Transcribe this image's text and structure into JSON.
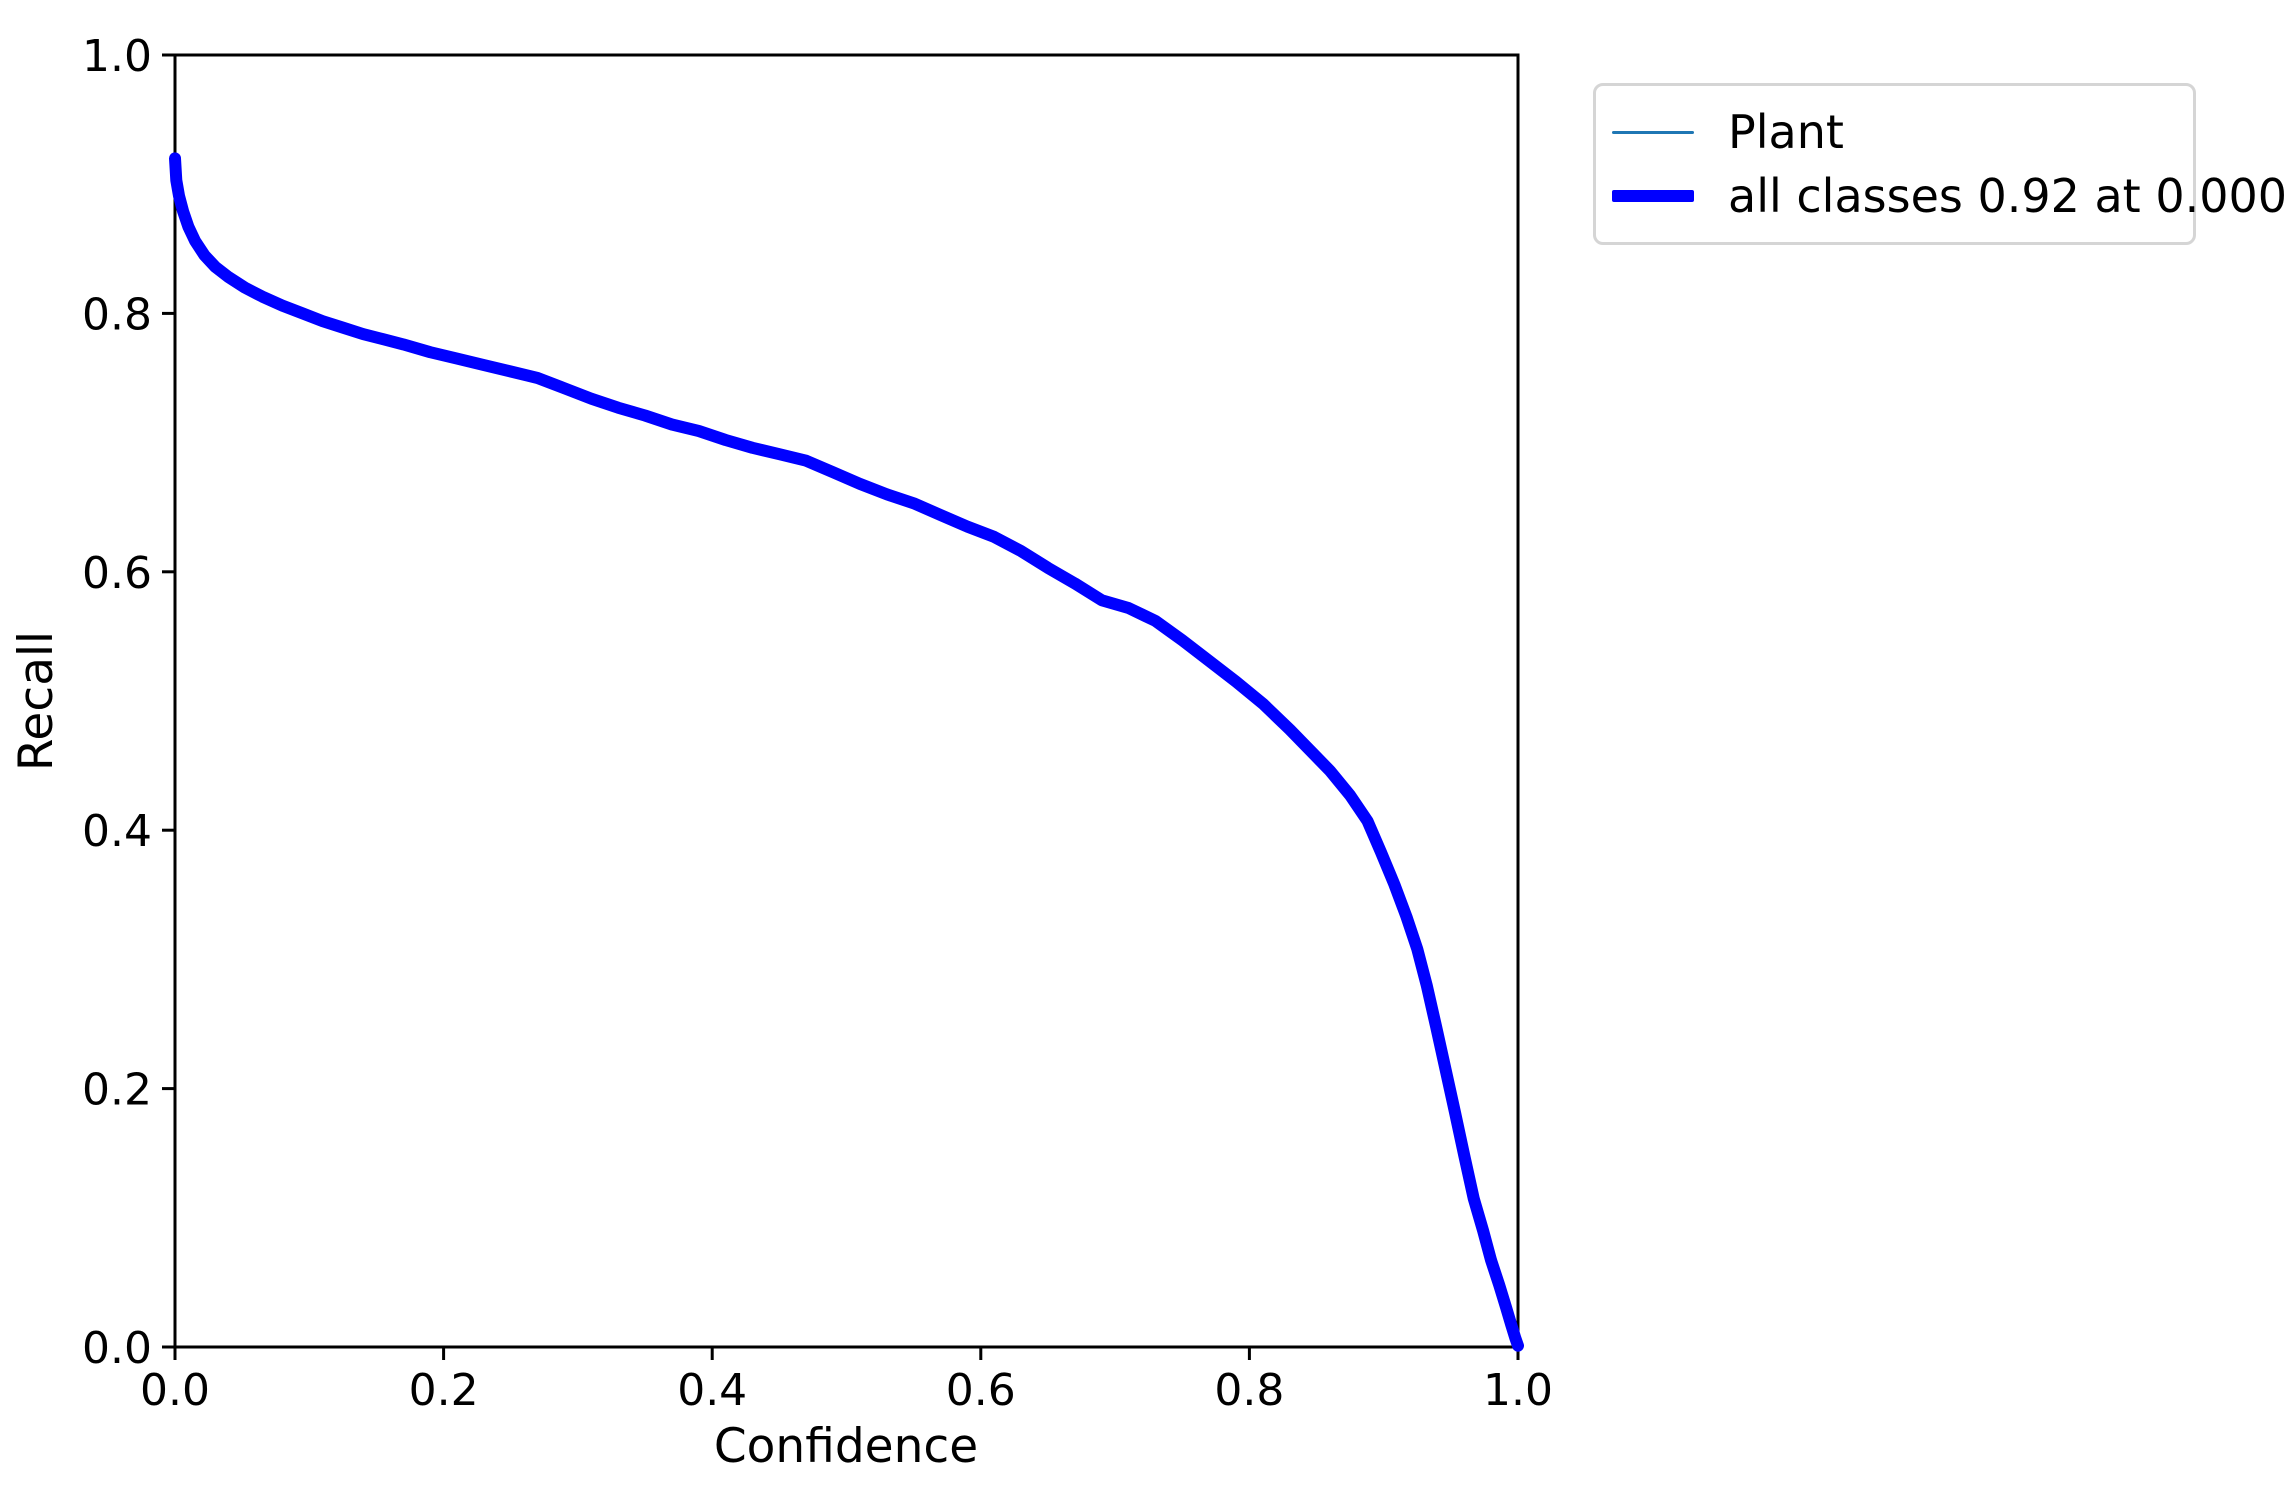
{
  "chart_data": {
    "type": "line",
    "title": "",
    "xlabel": "Confidence",
    "ylabel": "Recall",
    "xlim": [
      0.0,
      1.0
    ],
    "ylim": [
      0.0,
      1.0
    ],
    "grid": false,
    "background": "#ffffff",
    "axis_color": "#000000",
    "text_color": "#000000",
    "x_tick_values": [
      0.0,
      0.2,
      0.4,
      0.6,
      0.8,
      1.0
    ],
    "x_ticks": [
      "0.0",
      "0.2",
      "0.4",
      "0.6",
      "0.8",
      "1.0"
    ],
    "y_tick_values": [
      0.0,
      0.2,
      0.4,
      0.6,
      0.8,
      1.0
    ],
    "y_ticks": [
      "0.0",
      "0.2",
      "0.4",
      "0.6",
      "0.8",
      "1.0"
    ],
    "legend_position": "upper right, outside axes",
    "points_shared": true,
    "points": [
      [
        0.0,
        0.92
      ],
      [
        0.001,
        0.903
      ],
      [
        0.003,
        0.891
      ],
      [
        0.006,
        0.879
      ],
      [
        0.01,
        0.867
      ],
      [
        0.015,
        0.856
      ],
      [
        0.022,
        0.845
      ],
      [
        0.03,
        0.836
      ],
      [
        0.04,
        0.828
      ],
      [
        0.052,
        0.82
      ],
      [
        0.065,
        0.813
      ],
      [
        0.08,
        0.806
      ],
      [
        0.095,
        0.8
      ],
      [
        0.11,
        0.794
      ],
      [
        0.125,
        0.789
      ],
      [
        0.14,
        0.784
      ],
      [
        0.155,
        0.78
      ],
      [
        0.17,
        0.776
      ],
      [
        0.19,
        0.77
      ],
      [
        0.21,
        0.765
      ],
      [
        0.23,
        0.76
      ],
      [
        0.25,
        0.755
      ],
      [
        0.27,
        0.75
      ],
      [
        0.29,
        0.742
      ],
      [
        0.31,
        0.734
      ],
      [
        0.33,
        0.727
      ],
      [
        0.35,
        0.721
      ],
      [
        0.37,
        0.714
      ],
      [
        0.39,
        0.709
      ],
      [
        0.41,
        0.702
      ],
      [
        0.43,
        0.696
      ],
      [
        0.45,
        0.691
      ],
      [
        0.47,
        0.686
      ],
      [
        0.49,
        0.677
      ],
      [
        0.51,
        0.668
      ],
      [
        0.53,
        0.66
      ],
      [
        0.55,
        0.653
      ],
      [
        0.57,
        0.644
      ],
      [
        0.59,
        0.635
      ],
      [
        0.61,
        0.627
      ],
      [
        0.63,
        0.616
      ],
      [
        0.65,
        0.603
      ],
      [
        0.67,
        0.591
      ],
      [
        0.69,
        0.578
      ],
      [
        0.71,
        0.572
      ],
      [
        0.73,
        0.562
      ],
      [
        0.75,
        0.547
      ],
      [
        0.77,
        0.531
      ],
      [
        0.79,
        0.515
      ],
      [
        0.81,
        0.498
      ],
      [
        0.83,
        0.478
      ],
      [
        0.845,
        0.462
      ],
      [
        0.86,
        0.446
      ],
      [
        0.875,
        0.427
      ],
      [
        0.888,
        0.407
      ],
      [
        0.898,
        0.383
      ],
      [
        0.908,
        0.358
      ],
      [
        0.917,
        0.333
      ],
      [
        0.925,
        0.308
      ],
      [
        0.932,
        0.28
      ],
      [
        0.939,
        0.248
      ],
      [
        0.946,
        0.215
      ],
      [
        0.953,
        0.182
      ],
      [
        0.96,
        0.148
      ],
      [
        0.967,
        0.115
      ],
      [
        0.974,
        0.09
      ],
      [
        0.98,
        0.067
      ],
      [
        0.986,
        0.048
      ],
      [
        0.991,
        0.031
      ],
      [
        0.995,
        0.017
      ],
      [
        0.998,
        0.007
      ],
      [
        1.0,
        0.001
      ]
    ],
    "series": [
      {
        "name": "Plant",
        "color": "#1f77b4",
        "width": 3
      },
      {
        "name": "all classes 0.92 at 0.000",
        "color": "#0000ff",
        "width": 12
      }
    ]
  },
  "legend": {
    "entries": [
      {
        "label": "Plant",
        "color": "#1f77b4",
        "thickness": 3
      },
      {
        "label": "all classes 0.92 at 0.000",
        "color": "#0000ff",
        "thickness": 12
      }
    ]
  }
}
